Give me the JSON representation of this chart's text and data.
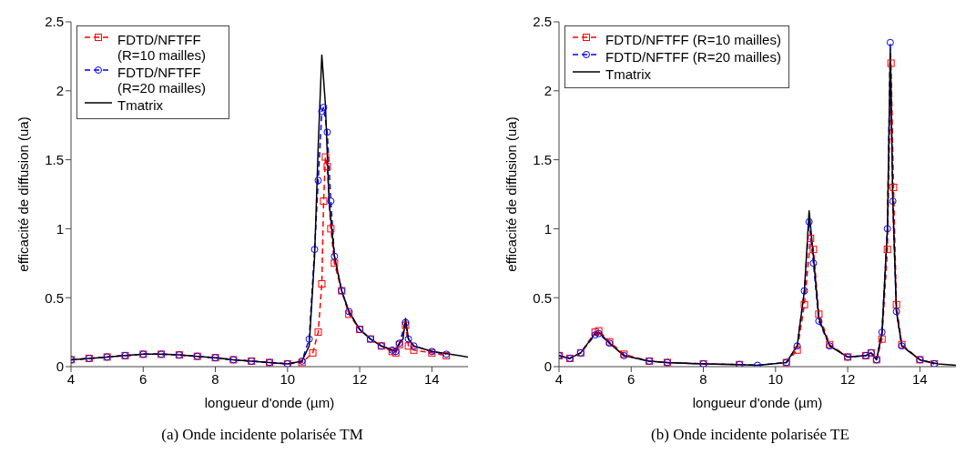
{
  "chart_data": [
    {
      "type": "line",
      "title": "(a)  Onde incidente polarisée TM",
      "xlabel": "longueur d'onde (µm)",
      "ylabel": "efficacité de diffusion (ua)",
      "xlim": [
        4,
        15
      ],
      "xticks": [
        4,
        6,
        8,
        10,
        12,
        14
      ],
      "ylim": [
        0,
        2.5
      ],
      "yticks": [
        0,
        0.5,
        1,
        1.5,
        2,
        2.5
      ],
      "legend": "top left",
      "grid": false,
      "series": [
        {
          "name": "FDTD/NFTFF (R=10 mailles)",
          "color": "#ff0000",
          "marker": "square",
          "line_style": "dashed",
          "x": [
            4,
            4.5,
            5,
            5.5,
            6,
            6.5,
            7,
            7.5,
            8,
            8.5,
            9,
            9.5,
            10,
            10.4,
            10.7,
            10.85,
            10.95,
            11.0,
            11.05,
            11.1,
            11.2,
            11.3,
            11.5,
            11.7,
            12,
            12.3,
            12.6,
            12.9,
            13.0,
            13.1,
            13.27,
            13.35,
            13.5,
            14,
            14.4
          ],
          "values": [
            0.05,
            0.06,
            0.07,
            0.08,
            0.09,
            0.09,
            0.085,
            0.075,
            0.065,
            0.05,
            0.04,
            0.03,
            0.02,
            0.03,
            0.1,
            0.25,
            0.6,
            1.2,
            1.52,
            1.45,
            1.0,
            0.75,
            0.55,
            0.38,
            0.27,
            0.2,
            0.15,
            0.11,
            0.1,
            0.16,
            0.3,
            0.15,
            0.12,
            0.1,
            0.08
          ]
        },
        {
          "name": "FDTD/NFTFF (R=20 mailles)",
          "color": "#0000ff",
          "marker": "circle",
          "line_style": "dashed",
          "x": [
            4,
            4.5,
            5,
            5.5,
            6,
            6.5,
            7,
            7.5,
            8,
            8.5,
            9,
            9.5,
            10,
            10.4,
            10.6,
            10.75,
            10.85,
            10.95,
            11.0,
            11.1,
            11.2,
            11.3,
            11.5,
            11.7,
            12,
            12.3,
            12.6,
            12.9,
            13.0,
            13.1,
            13.27,
            13.35,
            13.5,
            14,
            14.4
          ],
          "values": [
            0.05,
            0.06,
            0.07,
            0.08,
            0.09,
            0.09,
            0.085,
            0.075,
            0.065,
            0.05,
            0.04,
            0.03,
            0.02,
            0.04,
            0.2,
            0.85,
            1.35,
            1.85,
            1.88,
            1.7,
            1.2,
            0.8,
            0.55,
            0.4,
            0.27,
            0.2,
            0.15,
            0.12,
            0.11,
            0.17,
            0.32,
            0.2,
            0.15,
            0.11,
            0.09
          ]
        },
        {
          "name": "Tmatrix",
          "color": "#000000",
          "marker": "none",
          "line_style": "solid",
          "x": [
            4,
            4.5,
            5,
            5.5,
            6,
            6.5,
            7,
            7.5,
            8,
            8.5,
            9,
            9.5,
            10,
            10.4,
            10.6,
            10.75,
            10.85,
            10.95,
            11.05,
            11.15,
            11.3,
            11.5,
            11.7,
            12,
            12.3,
            12.6,
            12.9,
            13.0,
            13.1,
            13.2,
            13.27,
            13.35,
            13.5,
            14,
            14.5,
            15
          ],
          "values": [
            0.05,
            0.06,
            0.07,
            0.08,
            0.09,
            0.09,
            0.085,
            0.075,
            0.065,
            0.05,
            0.04,
            0.03,
            0.02,
            0.04,
            0.15,
            0.8,
            1.6,
            2.26,
            1.9,
            1.2,
            0.8,
            0.55,
            0.4,
            0.27,
            0.2,
            0.15,
            0.12,
            0.11,
            0.17,
            0.2,
            0.35,
            0.2,
            0.15,
            0.11,
            0.09,
            0.07
          ]
        }
      ]
    },
    {
      "type": "line",
      "title": "(b)  Onde incidente polarisée TE",
      "xlabel": "longueur d'onde (µm)",
      "ylabel": "efficacité de diffusion (ua)",
      "xlim": [
        4,
        15
      ],
      "xticks": [
        4,
        6,
        8,
        10,
        12,
        14
      ],
      "ylim": [
        0,
        2.5
      ],
      "yticks": [
        0,
        0.5,
        1,
        1.5,
        2,
        2.5
      ],
      "legend": "top left",
      "grid": false,
      "series": [
        {
          "name": "FDTD/NFTFF (R=10 mailles)",
          "color": "#ff0000",
          "marker": "square",
          "line_style": "dashed",
          "x": [
            4,
            4.3,
            4.6,
            5.0,
            5.1,
            5.4,
            5.8,
            6.5,
            7,
            8,
            9,
            9.5,
            10.3,
            10.6,
            10.8,
            10.97,
            11.05,
            11.2,
            11.5,
            12,
            12.5,
            12.65,
            12.8,
            12.95,
            13.1,
            13.2,
            13.27,
            13.35,
            13.5,
            14,
            14.4
          ],
          "values": [
            0.08,
            0.06,
            0.1,
            0.25,
            0.26,
            0.18,
            0.09,
            0.04,
            0.03,
            0.02,
            0.015,
            null,
            0.03,
            0.12,
            0.45,
            0.93,
            0.85,
            0.38,
            0.16,
            0.07,
            0.08,
            0.1,
            0.05,
            0.2,
            0.85,
            2.2,
            1.3,
            0.45,
            0.16,
            0.05,
            0.02
          ]
        },
        {
          "name": "FDTD/NFTFF (R=20 mailles)",
          "color": "#0000ff",
          "marker": "circle",
          "line_style": "dashed",
          "x": [
            4,
            4.3,
            4.6,
            5.0,
            5.1,
            5.4,
            5.8,
            6.5,
            7,
            8,
            9,
            9.5,
            10.3,
            10.6,
            10.8,
            10.93,
            11.05,
            11.2,
            11.5,
            12,
            12.5,
            12.65,
            12.8,
            12.95,
            13.1,
            13.18,
            13.25,
            13.35,
            13.5,
            14,
            14.4
          ],
          "values": [
            0.08,
            0.06,
            0.1,
            0.23,
            0.24,
            0.17,
            0.08,
            0.04,
            0.03,
            0.02,
            0.015,
            0.01,
            0.03,
            0.15,
            0.55,
            1.05,
            0.75,
            0.33,
            0.15,
            0.07,
            0.08,
            0.1,
            0.05,
            0.25,
            1.0,
            2.35,
            1.2,
            0.4,
            0.15,
            0.05,
            0.02
          ]
        },
        {
          "name": "Tmatrix",
          "color": "#000000",
          "marker": "none",
          "line_style": "solid",
          "x": [
            4,
            4.3,
            4.6,
            5.0,
            5.1,
            5.4,
            5.8,
            6.5,
            7,
            8,
            9,
            9.5,
            10.3,
            10.6,
            10.8,
            10.93,
            11.05,
            11.2,
            11.5,
            12,
            12.5,
            12.65,
            12.8,
            12.95,
            13.1,
            13.18,
            13.25,
            13.35,
            13.5,
            14,
            14.5,
            15
          ],
          "values": [
            0.08,
            0.06,
            0.1,
            0.24,
            0.25,
            0.17,
            0.08,
            0.04,
            0.03,
            0.02,
            0.015,
            0.01,
            0.03,
            0.15,
            0.55,
            1.13,
            0.8,
            0.35,
            0.15,
            0.07,
            0.08,
            0.1,
            0.05,
            0.25,
            1.0,
            2.3,
            1.2,
            0.4,
            0.15,
            0.05,
            0.02,
            0.01
          ]
        }
      ]
    }
  ]
}
